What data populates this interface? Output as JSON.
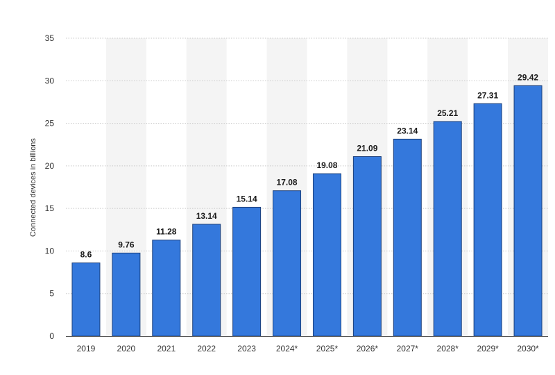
{
  "chart_data": {
    "type": "bar",
    "title": "",
    "xlabel": "",
    "ylabel": "Connected devices in billions",
    "categories": [
      "2019",
      "2020",
      "2021",
      "2022",
      "2023",
      "2024*",
      "2025*",
      "2026*",
      "2027*",
      "2028*",
      "2029*",
      "2030*"
    ],
    "values": [
      8.6,
      9.76,
      11.28,
      13.14,
      15.14,
      17.08,
      19.08,
      21.09,
      23.14,
      25.21,
      27.31,
      29.42
    ],
    "value_labels": [
      "8.6",
      "9.76",
      "11.28",
      "13.14",
      "15.14",
      "17.08",
      "19.08",
      "21.09",
      "23.14",
      "25.21",
      "27.31",
      "29.42"
    ],
    "ylim": [
      0,
      35
    ],
    "yticks": [
      0,
      5,
      10,
      15,
      20,
      25,
      30,
      35
    ],
    "ytick_labels": [
      "0",
      "5",
      "10",
      "15",
      "20",
      "25",
      "30",
      "35"
    ],
    "grid": true,
    "grid_style": "dotted",
    "alternating_column_shading": true,
    "legend": "none",
    "colors": {
      "bar": "#3478dc",
      "bar_edge": "#1b3f7a",
      "column_shade": "#f4f4f4",
      "grid": "#c8c8c8",
      "axis": "#555555"
    }
  }
}
